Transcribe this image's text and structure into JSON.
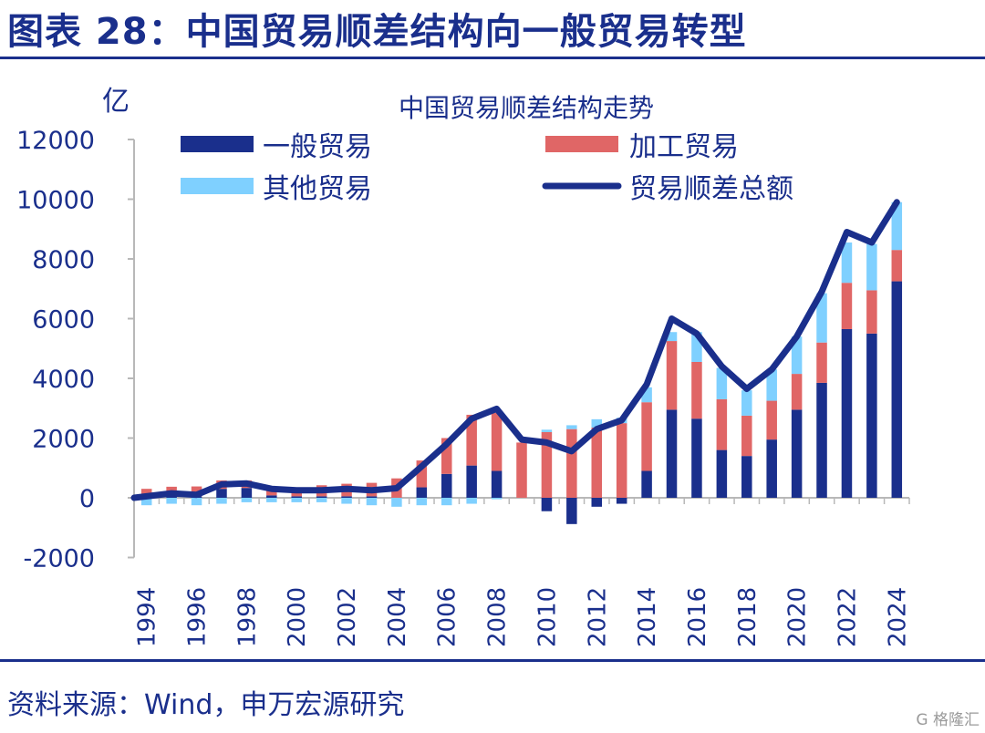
{
  "figure": {
    "title": "图表 28：中国贸易顺差结构向一般贸易转型",
    "source": "资料来源：Wind，申万宏源研究",
    "watermark": "G 格隆汇"
  },
  "chart_data": {
    "type": "bar",
    "title": "中国贸易顺差结构走势",
    "ylabel": "亿",
    "xlabel": "",
    "ylim": [
      -2000,
      12000
    ],
    "yticks": [
      -2000,
      0,
      2000,
      4000,
      6000,
      8000,
      10000,
      12000
    ],
    "xtick_labels": [
      "1994",
      "1996",
      "1998",
      "2000",
      "2002",
      "2004",
      "2006",
      "2008",
      "2010",
      "2012",
      "2014",
      "2016",
      "2018",
      "2020",
      "2022",
      "2024"
    ],
    "x": [
      1994,
      1995,
      1996,
      1997,
      1998,
      1999,
      2000,
      2001,
      2002,
      2003,
      2004,
      2005,
      2006,
      2007,
      2008,
      2009,
      2010,
      2011,
      2012,
      2013,
      2014,
      2015,
      2016,
      2017,
      2018,
      2019,
      2020,
      2021,
      2022,
      2023,
      2024
    ],
    "stacked": true,
    "legend": "top",
    "grid": false,
    "colors": {
      "general": "#1a2f8c",
      "processing": "#e06666",
      "other": "#7fd0ff",
      "total": "#1a2f8c",
      "text": "#1a2f8c",
      "axis": "#b8b8b8"
    },
    "series": [
      {
        "name": "一般贸易",
        "type": "bar",
        "color": "#1a2f8c",
        "values": [
          50,
          80,
          50,
          300,
          330,
          80,
          50,
          50,
          50,
          50,
          0,
          350,
          800,
          1080,
          900,
          0,
          -450,
          -880,
          -300,
          -200,
          900,
          2950,
          2650,
          1600,
          1400,
          1950,
          2950,
          3850,
          5650,
          5500,
          7250
        ]
      },
      {
        "name": "加工贸易",
        "type": "bar",
        "color": "#e06666",
        "values": [
          250,
          290,
          330,
          280,
          250,
          280,
          300,
          370,
          420,
          450,
          650,
          900,
          1200,
          1700,
          1950,
          1850,
          2200,
          2300,
          2350,
          2500,
          2300,
          2300,
          1900,
          1700,
          1350,
          1300,
          1200,
          1350,
          1550,
          1450,
          1050
        ]
      },
      {
        "name": "其他贸易",
        "type": "bar",
        "color": "#7fd0ff",
        "values": [
          -250,
          -200,
          -250,
          -200,
          -150,
          -150,
          -150,
          -150,
          -200,
          -250,
          -300,
          -250,
          -250,
          -200,
          -50,
          0,
          80,
          130,
          280,
          180,
          500,
          300,
          1000,
          1050,
          850,
          1050,
          1250,
          1650,
          1350,
          1550,
          1600
        ]
      },
      {
        "name": "贸易顺差总额",
        "type": "line",
        "color": "#1a2f8c",
        "values": [
          0,
          150,
          100,
          450,
          480,
          300,
          250,
          250,
          300,
          250,
          320,
          1050,
          1800,
          2650,
          2980,
          1950,
          1850,
          1560,
          2300,
          2600,
          3800,
          6000,
          5500,
          4400,
          3650,
          4300,
          5400,
          6900,
          8900,
          8550,
          9900
        ]
      }
    ]
  }
}
